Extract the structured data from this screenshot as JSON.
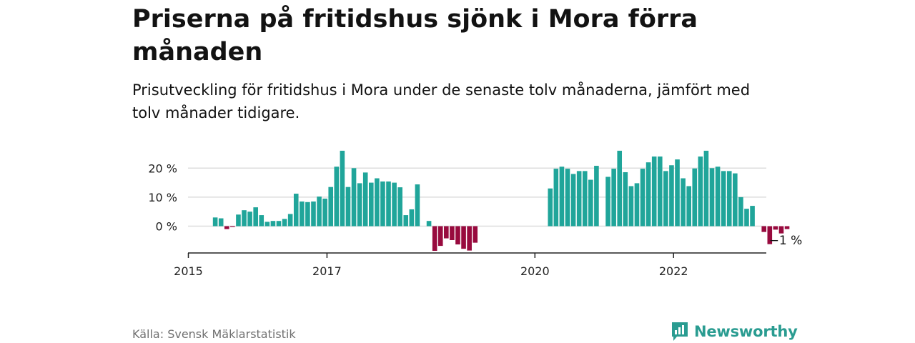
{
  "title": "Priserna på fritidshus sjönk i Mora förra månaden",
  "subtitle": "Prisutveckling för fritidshus i Mora under de senaste tolv månaderna, jämfört med tolv månader tidigare.",
  "source": "Källa: Svensk Mäklarstatistik",
  "logo_text": "Newsworthy",
  "colors": {
    "positive": "#20a59a",
    "negative": "#980a3e",
    "grid": "#dddddd",
    "axis": "#222222",
    "brand": "#2a9c91"
  },
  "chart_data": {
    "type": "bar",
    "x_start": "2015-01",
    "frequency": "monthly",
    "x_ticks": [
      "2015",
      "2017",
      "2020",
      "2022"
    ],
    "y_ticks": [
      "0 %",
      "10 %",
      "20 %"
    ],
    "ylim": [
      -9,
      27
    ],
    "grid": true,
    "annotation": "−1 %",
    "values": [
      null,
      null,
      null,
      null,
      3,
      2.7,
      -1,
      -0.3,
      4,
      5.5,
      5,
      6.5,
      3.8,
      1.5,
      1.8,
      1.8,
      2.5,
      4.2,
      11.2,
      8.5,
      8.3,
      8.5,
      10.2,
      9.5,
      13.5,
      20.5,
      26,
      13.5,
      20,
      14.8,
      18.5,
      15,
      16.5,
      15.4,
      15.4,
      15,
      13.4,
      3.8,
      5.8,
      14.4,
      null,
      1.8,
      -8.5,
      -6.8,
      -4.2,
      -4.8,
      -6.3,
      -7.8,
      -8.4,
      -5.7,
      null,
      null,
      null,
      null,
      null,
      null,
      null,
      null,
      null,
      null,
      null,
      null,
      13,
      19.8,
      20.5,
      19.8,
      18,
      19,
      19,
      16,
      20.8,
      null,
      17,
      19.8,
      26,
      18.6,
      13.8,
      14.8,
      19.8,
      22,
      24,
      24,
      19,
      21,
      23,
      16.5,
      13.8,
      19.9,
      24,
      26,
      20,
      20.5,
      19,
      19,
      18.2,
      10,
      6,
      7,
      null,
      -2,
      -6.2,
      -1.2,
      -2.5,
      -1
    ]
  }
}
